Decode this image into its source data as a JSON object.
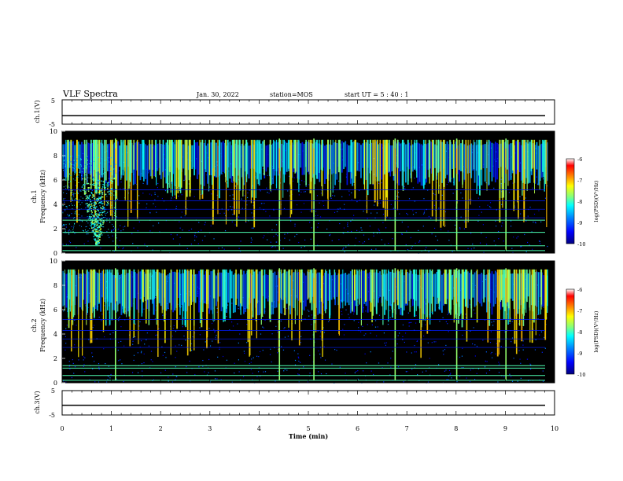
{
  "header": {
    "title": "VLF Spectra",
    "date": "Jan. 30, 2022",
    "station": "station=MOS",
    "start_ut": "start  UT =  5 : 40 : 1"
  },
  "colors": {
    "background": "#000000",
    "colormap": [
      "#00007f",
      "#0000ff",
      "#0080ff",
      "#00ffff",
      "#80ff80",
      "#ffff00",
      "#ff8000",
      "#ff0000",
      "#ffffff"
    ]
  },
  "chart_data": [
    {
      "type": "line",
      "panel": "ch1-voltage",
      "ylabel": "ch.1(V)",
      "ylim": [
        -5,
        5
      ],
      "yticks": [
        "5",
        "-5"
      ],
      "x": [
        0,
        10
      ],
      "y": [
        -1.5,
        -1.5
      ]
    },
    {
      "type": "heatmap",
      "panel": "ch1-spectrogram",
      "ylabel": "ch.1\nFrequency (kHz)",
      "ylim": [
        0,
        10
      ],
      "yticks": [
        "0",
        "2",
        "4",
        "6",
        "8",
        "10"
      ],
      "xlim": [
        0,
        10
      ],
      "colorbar": {
        "label": "log(PSD)(V²/Hz)",
        "range": [
          -10,
          -6
        ],
        "ticks": [
          "-6",
          "-7",
          "-8",
          "-9",
          "-10"
        ]
      },
      "strong_lines_khz": [
        0.2,
        0.6,
        1.7,
        2.7
      ],
      "whistler_burst_min": 0.75,
      "notable_sferics_min": [
        1.07,
        4.4,
        5.1,
        6.75,
        8.0,
        9.0
      ]
    },
    {
      "type": "heatmap",
      "panel": "ch2-spectrogram",
      "ylabel": "ch.2\nFrequency (kHz)",
      "ylim": [
        0,
        10
      ],
      "yticks": [
        "0",
        "2",
        "4",
        "6",
        "8",
        "10"
      ],
      "xlim": [
        0,
        10
      ],
      "colorbar": {
        "label": "log(PSD)(V²/Hz)",
        "range": [
          -10,
          -6
        ],
        "ticks": [
          "-6",
          "-7",
          "-8",
          "-9",
          "-10"
        ]
      },
      "strong_lines_khz": [
        0.2,
        0.6,
        1.2,
        1.4
      ],
      "notable_sferics_min": [
        1.07,
        4.4,
        5.1,
        6.75,
        8.0,
        9.0
      ]
    },
    {
      "type": "line",
      "panel": "ch3-voltage",
      "ylabel": "ch.3(V)",
      "ylim": [
        -5,
        5
      ],
      "yticks": [
        "5",
        "-5"
      ],
      "x": [
        0,
        10
      ],
      "y": [
        -1.0,
        -1.0
      ]
    }
  ],
  "xaxis": {
    "label": "Time (min)",
    "ticks": [
      "0",
      "1",
      "2",
      "3",
      "4",
      "5",
      "6",
      "7",
      "8",
      "9",
      "10"
    ],
    "xlim": [
      0,
      10
    ]
  }
}
